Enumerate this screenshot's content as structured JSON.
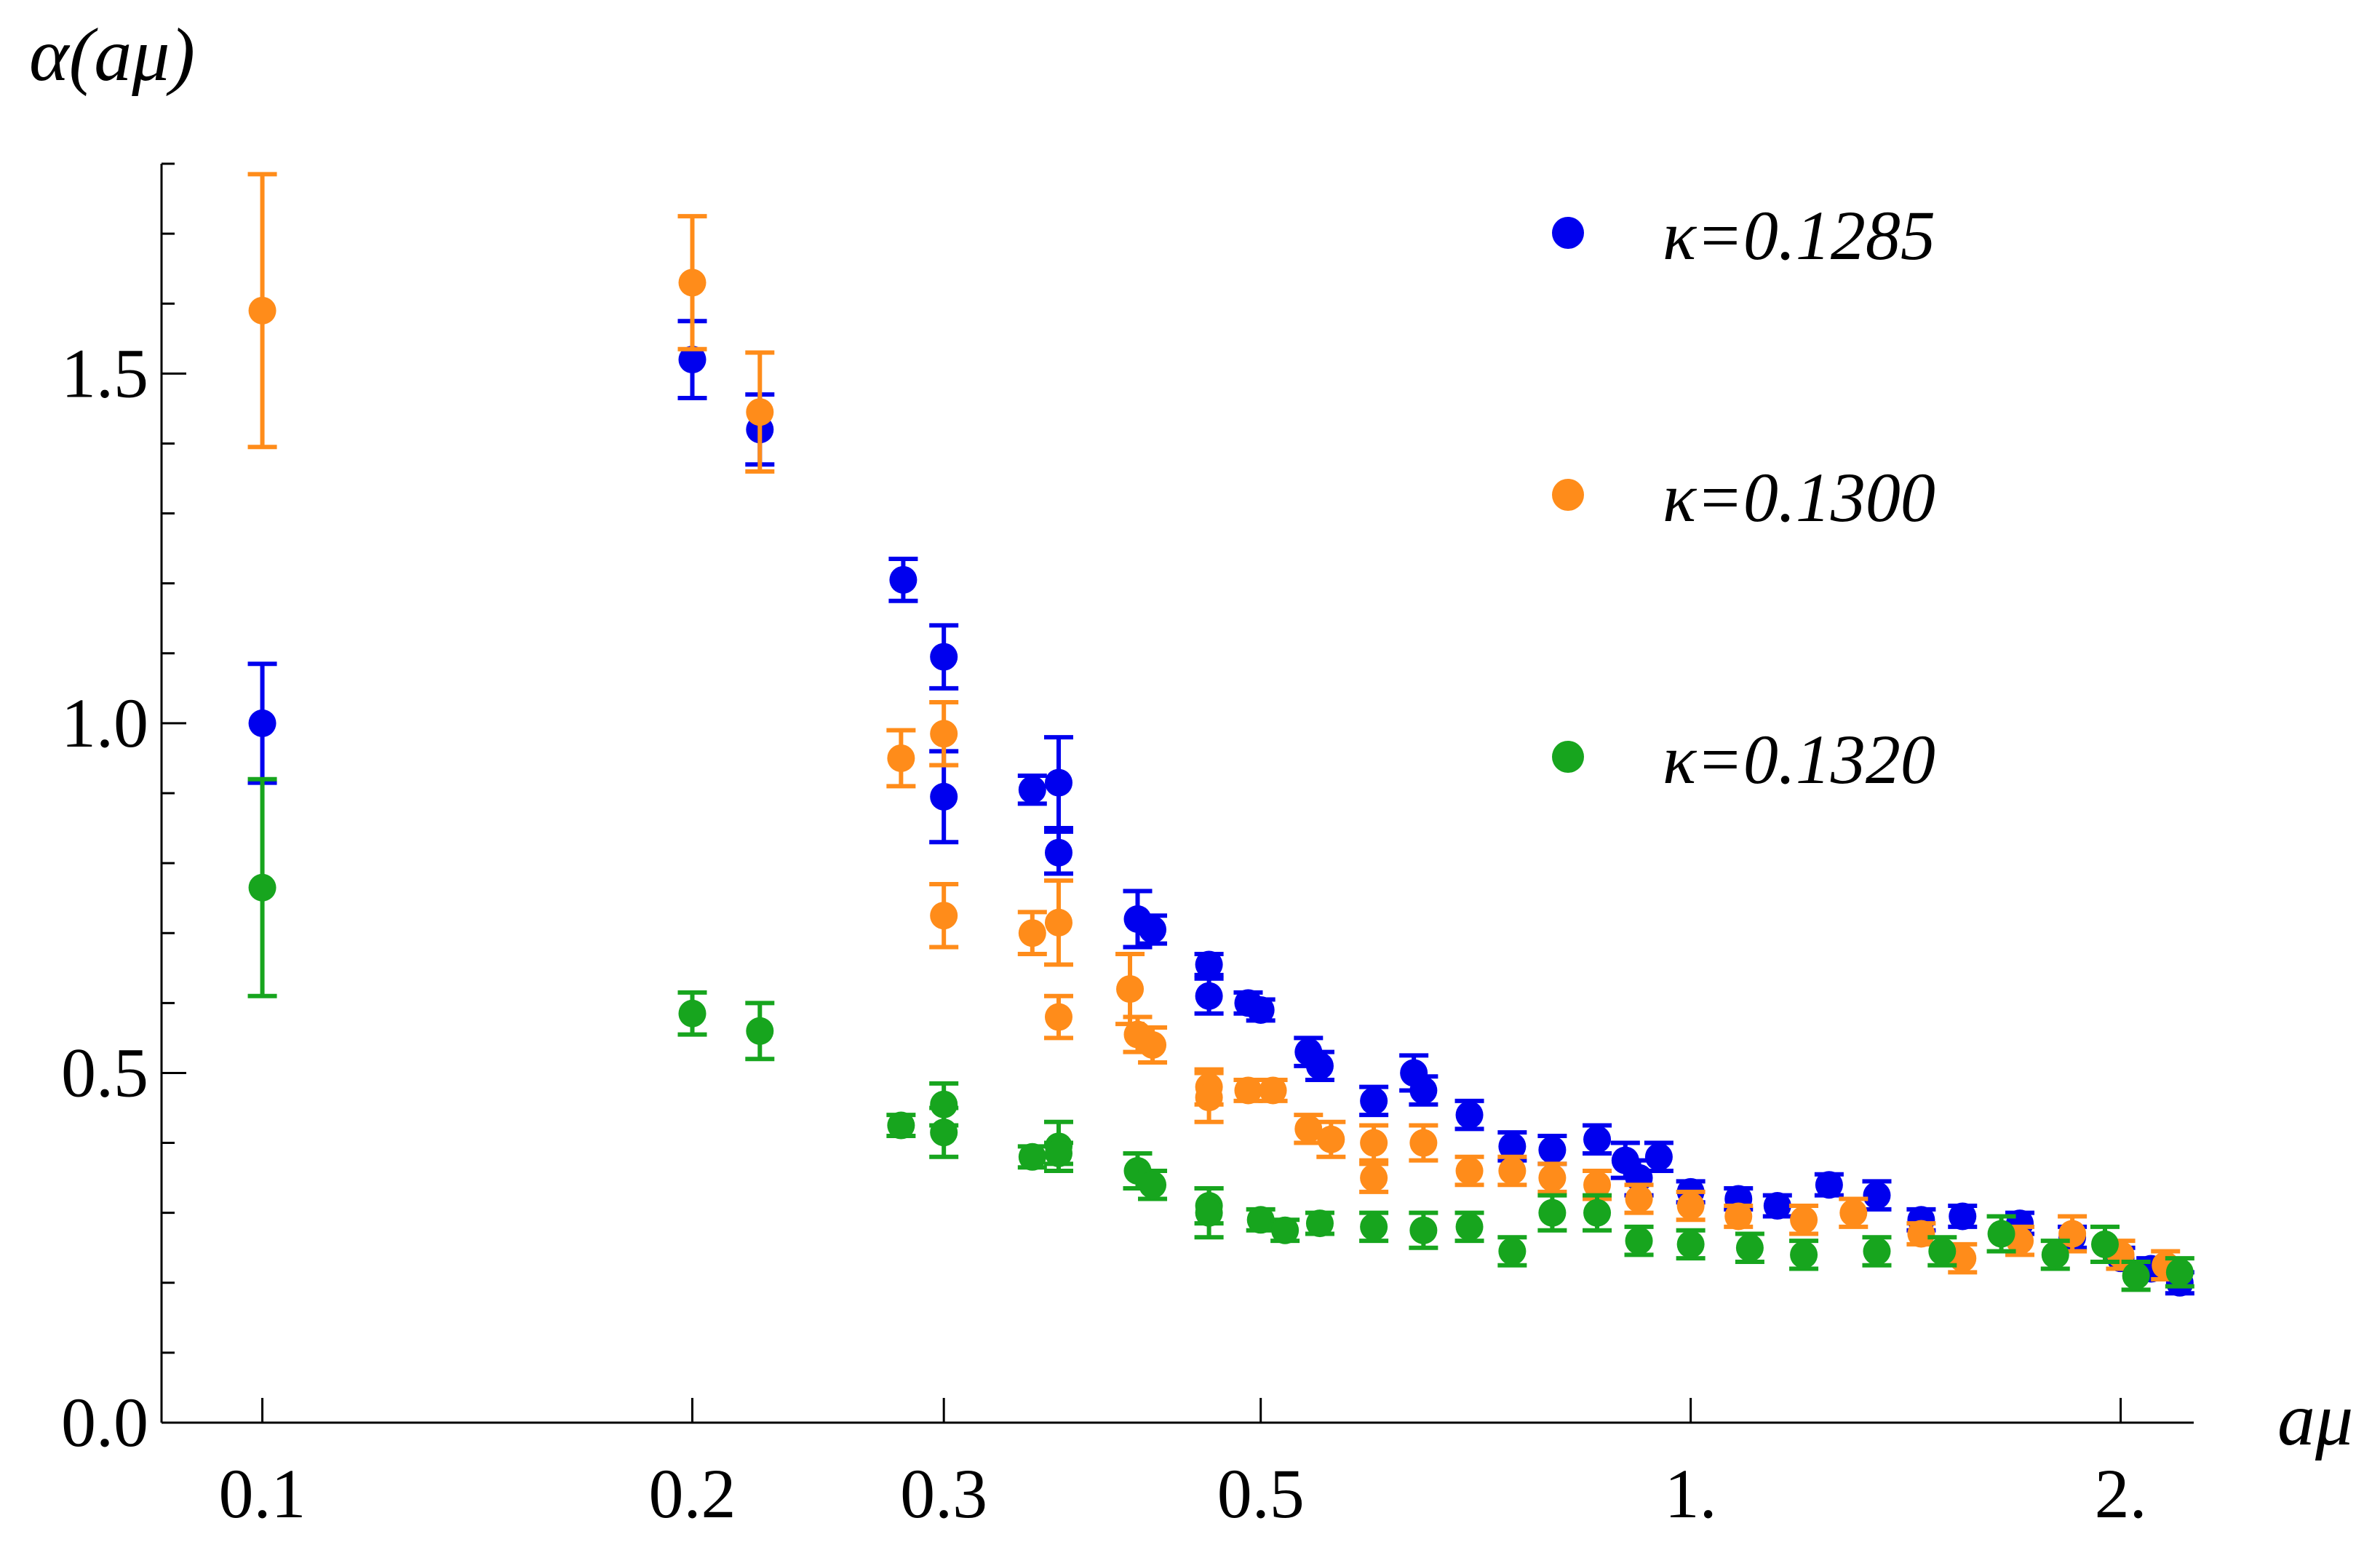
{
  "chart_data": {
    "type": "scatter",
    "title": "",
    "xlabel": "aμ",
    "ylabel": "α(aμ)",
    "xscale": "log",
    "xlim": [
      0.085,
      2.25
    ],
    "ylim": [
      0,
      1.8
    ],
    "xticks": [
      0.1,
      0.2,
      0.3,
      0.5,
      1.0,
      2.0
    ],
    "xtick_labels": [
      "0.1",
      "0.2",
      "0.3",
      "0.5",
      "1.",
      "2."
    ],
    "yticks": [
      0.0,
      0.5,
      1.0,
      1.5
    ],
    "ytick_labels": [
      "0.0",
      "0.5",
      "1.0",
      "1.5"
    ],
    "yminor": [
      0.1,
      0.2,
      0.3,
      0.4,
      0.6,
      0.7,
      0.8,
      0.9,
      1.1,
      1.2,
      1.3,
      1.4,
      1.6,
      1.7,
      1.8
    ],
    "legend_position": "top-right",
    "series": [
      {
        "name": "κ=0.1285",
        "color": "#0000ee",
        "points": [
          {
            "x": 0.1,
            "y": 1.0,
            "err": 0.085
          },
          {
            "x": 0.2,
            "y": 1.52,
            "err": 0.055
          },
          {
            "x": 0.223,
            "y": 1.42,
            "err": 0.05
          },
          {
            "x": 0.281,
            "y": 1.205,
            "err": 0.03
          },
          {
            "x": 0.3,
            "y": 1.095,
            "err": 0.045
          },
          {
            "x": 0.3,
            "y": 0.895,
            "err": 0.065
          },
          {
            "x": 0.346,
            "y": 0.905,
            "err": 0.02
          },
          {
            "x": 0.361,
            "y": 0.915,
            "err": 0.065
          },
          {
            "x": 0.361,
            "y": 0.815,
            "err": 0.03
          },
          {
            "x": 0.41,
            "y": 0.72,
            "err": 0.04
          },
          {
            "x": 0.42,
            "y": 0.705,
            "err": 0.02
          },
          {
            "x": 0.46,
            "y": 0.655,
            "err": 0.015
          },
          {
            "x": 0.46,
            "y": 0.61,
            "err": 0.025
          },
          {
            "x": 0.49,
            "y": 0.6,
            "err": 0.015
          },
          {
            "x": 0.5,
            "y": 0.59,
            "err": 0.015
          },
          {
            "x": 0.54,
            "y": 0.53,
            "err": 0.02
          },
          {
            "x": 0.55,
            "y": 0.51,
            "err": 0.02
          },
          {
            "x": 0.6,
            "y": 0.46,
            "err": 0.02
          },
          {
            "x": 0.64,
            "y": 0.5,
            "err": 0.025
          },
          {
            "x": 0.65,
            "y": 0.475,
            "err": 0.02
          },
          {
            "x": 0.7,
            "y": 0.44,
            "err": 0.02
          },
          {
            "x": 0.75,
            "y": 0.395,
            "err": 0.02
          },
          {
            "x": 0.8,
            "y": 0.39,
            "err": 0.02
          },
          {
            "x": 0.86,
            "y": 0.405,
            "err": 0.02
          },
          {
            "x": 0.9,
            "y": 0.375,
            "err": 0.025
          },
          {
            "x": 0.92,
            "y": 0.35,
            "err": 0.025
          },
          {
            "x": 0.95,
            "y": 0.38,
            "err": 0.02
          },
          {
            "x": 1.0,
            "y": 0.33,
            "err": 0.015
          },
          {
            "x": 1.08,
            "y": 0.32,
            "err": 0.015
          },
          {
            "x": 1.15,
            "y": 0.31,
            "err": 0.015
          },
          {
            "x": 1.25,
            "y": 0.34,
            "err": 0.015
          },
          {
            "x": 1.35,
            "y": 0.325,
            "err": 0.02
          },
          {
            "x": 1.45,
            "y": 0.29,
            "err": 0.015
          },
          {
            "x": 1.55,
            "y": 0.295,
            "err": 0.015
          },
          {
            "x": 1.7,
            "y": 0.285,
            "err": 0.015
          },
          {
            "x": 1.85,
            "y": 0.265,
            "err": 0.015
          },
          {
            "x": 2.0,
            "y": 0.235,
            "err": 0.015
          },
          {
            "x": 2.1,
            "y": 0.22,
            "err": 0.015
          },
          {
            "x": 2.2,
            "y": 0.2,
            "err": 0.015
          }
        ]
      },
      {
        "name": "κ=0.1300",
        "color": "#ff8c1a",
        "points": [
          {
            "x": 0.1,
            "y": 1.59,
            "err": 0.195
          },
          {
            "x": 0.2,
            "y": 1.63,
            "err": 0.095
          },
          {
            "x": 0.223,
            "y": 1.445,
            "err": 0.085
          },
          {
            "x": 0.28,
            "y": 0.95,
            "err": 0.04
          },
          {
            "x": 0.3,
            "y": 0.985,
            "err": 0.045
          },
          {
            "x": 0.3,
            "y": 0.725,
            "err": 0.045
          },
          {
            "x": 0.346,
            "y": 0.7,
            "err": 0.03
          },
          {
            "x": 0.361,
            "y": 0.715,
            "err": 0.06
          },
          {
            "x": 0.361,
            "y": 0.58,
            "err": 0.03
          },
          {
            "x": 0.405,
            "y": 0.62,
            "err": 0.05
          },
          {
            "x": 0.41,
            "y": 0.555,
            "err": 0.025
          },
          {
            "x": 0.42,
            "y": 0.54,
            "err": 0.025
          },
          {
            "x": 0.46,
            "y": 0.48,
            "err": 0.025
          },
          {
            "x": 0.46,
            "y": 0.465,
            "err": 0.035
          },
          {
            "x": 0.49,
            "y": 0.475,
            "err": 0.015
          },
          {
            "x": 0.51,
            "y": 0.475,
            "err": 0.015
          },
          {
            "x": 0.54,
            "y": 0.42,
            "err": 0.02
          },
          {
            "x": 0.56,
            "y": 0.405,
            "err": 0.025
          },
          {
            "x": 0.6,
            "y": 0.4,
            "err": 0.025
          },
          {
            "x": 0.6,
            "y": 0.35,
            "err": 0.02
          },
          {
            "x": 0.65,
            "y": 0.4,
            "err": 0.025
          },
          {
            "x": 0.7,
            "y": 0.36,
            "err": 0.02
          },
          {
            "x": 0.75,
            "y": 0.36,
            "err": 0.02
          },
          {
            "x": 0.8,
            "y": 0.35,
            "err": 0.02
          },
          {
            "x": 0.86,
            "y": 0.34,
            "err": 0.02
          },
          {
            "x": 0.92,
            "y": 0.32,
            "err": 0.02
          },
          {
            "x": 1.0,
            "y": 0.31,
            "err": 0.02
          },
          {
            "x": 1.08,
            "y": 0.295,
            "err": 0.015
          },
          {
            "x": 1.2,
            "y": 0.29,
            "err": 0.02
          },
          {
            "x": 1.3,
            "y": 0.3,
            "err": 0.02
          },
          {
            "x": 1.45,
            "y": 0.27,
            "err": 0.015
          },
          {
            "x": 1.55,
            "y": 0.235,
            "err": 0.02
          },
          {
            "x": 1.7,
            "y": 0.26,
            "err": 0.02
          },
          {
            "x": 1.85,
            "y": 0.27,
            "err": 0.025
          },
          {
            "x": 2.0,
            "y": 0.24,
            "err": 0.02
          },
          {
            "x": 2.15,
            "y": 0.225,
            "err": 0.02
          }
        ]
      },
      {
        "name": "κ=0.1320",
        "color": "#17a51e",
        "points": [
          {
            "x": 0.1,
            "y": 0.765,
            "err": 0.155
          },
          {
            "x": 0.2,
            "y": 0.585,
            "err": 0.03
          },
          {
            "x": 0.223,
            "y": 0.56,
            "err": 0.04
          },
          {
            "x": 0.28,
            "y": 0.425,
            "err": 0.015
          },
          {
            "x": 0.3,
            "y": 0.455,
            "err": 0.03
          },
          {
            "x": 0.3,
            "y": 0.415,
            "err": 0.035
          },
          {
            "x": 0.346,
            "y": 0.38,
            "err": 0.015
          },
          {
            "x": 0.361,
            "y": 0.395,
            "err": 0.035
          },
          {
            "x": 0.361,
            "y": 0.385,
            "err": 0.015
          },
          {
            "x": 0.41,
            "y": 0.36,
            "err": 0.025
          },
          {
            "x": 0.42,
            "y": 0.34,
            "err": 0.02
          },
          {
            "x": 0.46,
            "y": 0.31,
            "err": 0.025
          },
          {
            "x": 0.46,
            "y": 0.3,
            "err": 0.035
          },
          {
            "x": 0.5,
            "y": 0.29,
            "err": 0.015
          },
          {
            "x": 0.52,
            "y": 0.275,
            "err": 0.015
          },
          {
            "x": 0.55,
            "y": 0.285,
            "err": 0.015
          },
          {
            "x": 0.6,
            "y": 0.28,
            "err": 0.02
          },
          {
            "x": 0.65,
            "y": 0.275,
            "err": 0.025
          },
          {
            "x": 0.7,
            "y": 0.28,
            "err": 0.02
          },
          {
            "x": 0.75,
            "y": 0.245,
            "err": 0.02
          },
          {
            "x": 0.8,
            "y": 0.3,
            "err": 0.025
          },
          {
            "x": 0.86,
            "y": 0.3,
            "err": 0.025
          },
          {
            "x": 0.92,
            "y": 0.26,
            "err": 0.02
          },
          {
            "x": 1.0,
            "y": 0.255,
            "err": 0.02
          },
          {
            "x": 1.1,
            "y": 0.25,
            "err": 0.02
          },
          {
            "x": 1.2,
            "y": 0.24,
            "err": 0.02
          },
          {
            "x": 1.35,
            "y": 0.245,
            "err": 0.02
          },
          {
            "x": 1.5,
            "y": 0.245,
            "err": 0.02
          },
          {
            "x": 1.65,
            "y": 0.27,
            "err": 0.025
          },
          {
            "x": 1.8,
            "y": 0.24,
            "err": 0.02
          },
          {
            "x": 1.95,
            "y": 0.255,
            "err": 0.025
          },
          {
            "x": 2.05,
            "y": 0.21,
            "err": 0.02
          },
          {
            "x": 2.2,
            "y": 0.215,
            "err": 0.02
          }
        ]
      }
    ]
  }
}
